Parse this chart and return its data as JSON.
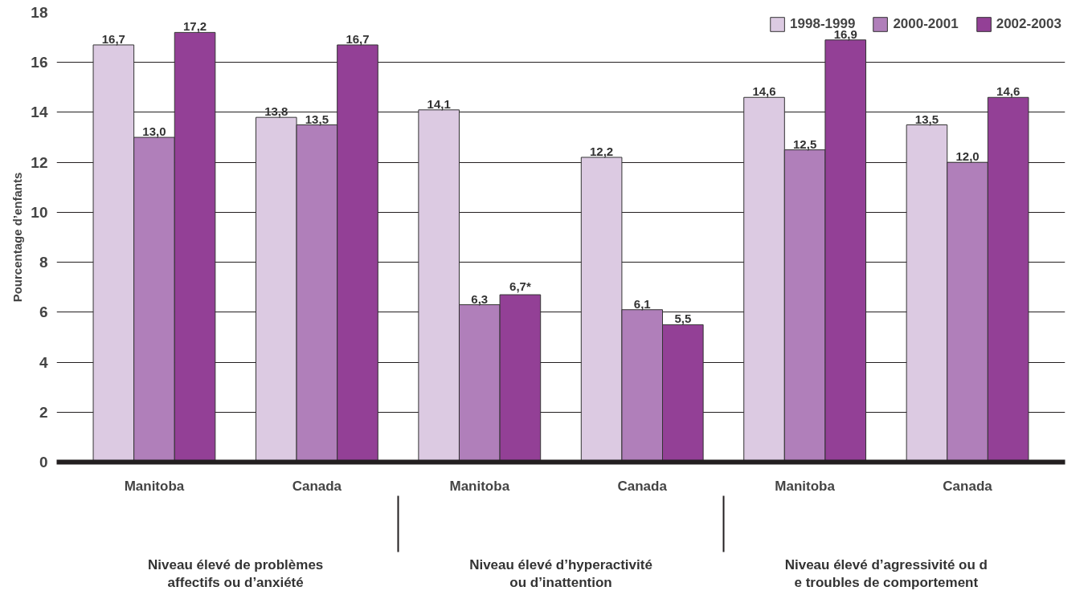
{
  "chart_data": {
    "type": "bar",
    "ylabel": "Pourcentage d’enfants",
    "categories": [
      "Manitoba",
      "Canada",
      "Manitoba",
      "Canada",
      "Manitoba",
      "Canada"
    ],
    "series": [
      {
        "name": "1998-1999",
        "color": "#dccae2",
        "values": [
          16.7,
          13.8,
          14.1,
          12.2,
          14.6,
          13.5
        ],
        "value_labels": [
          "16,7",
          "13,8",
          "14,1",
          "12,2",
          "14,6",
          "13,5"
        ]
      },
      {
        "name": "2000-2001",
        "color": "#b07fba",
        "values": [
          13.0,
          13.5,
          6.3,
          6.1,
          12.5,
          12.0
        ],
        "value_labels": [
          "13,0",
          "13,5",
          "6,3",
          "6,1",
          "12,5",
          "12,0"
        ]
      },
      {
        "name": "2002-2003",
        "color": "#934096",
        "values": [
          17.2,
          16.7,
          6.7,
          5.5,
          16.9,
          14.6
        ],
        "value_labels": [
          "17,2",
          "16,7",
          "6,7*",
          "5,5",
          "16,9",
          "14,6"
        ]
      }
    ],
    "annotations": [
      "Niveau élevé de problèmes\naffectifs ou d’anxiété",
      "Niveau élevé d’hyperactivité\nou d’inattention",
      "Niveau élevé d’agressivité ou d\ne troubles de comportement"
    ],
    "ylim": [
      0,
      18
    ],
    "yticks": [
      0,
      2,
      4,
      6,
      8,
      10,
      12,
      14,
      16,
      18
    ],
    "grid": "y",
    "legend": "top right"
  }
}
